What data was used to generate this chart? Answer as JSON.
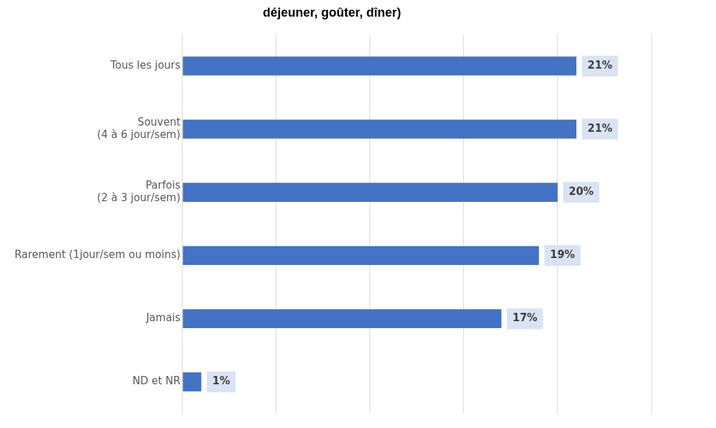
{
  "chart_data": {
    "type": "bar",
    "orientation": "horizontal",
    "title": "déjeuner, goûter, dîner)",
    "categories": [
      "Tous les jours",
      "Souvent\n(4 à 6 jour/sem)",
      "Parfois\n(2 à 3 jour/sem)",
      "Rarement (1jour/sem ou moins)",
      "Jamais",
      "ND et NR"
    ],
    "values": [
      21,
      21,
      20,
      19,
      17,
      1
    ],
    "color": "#4472c4",
    "value_labels": [
      "21%",
      "21%",
      "20%",
      "19%",
      "17%",
      "1%"
    ],
    "grid": "x",
    "legend": false
  }
}
